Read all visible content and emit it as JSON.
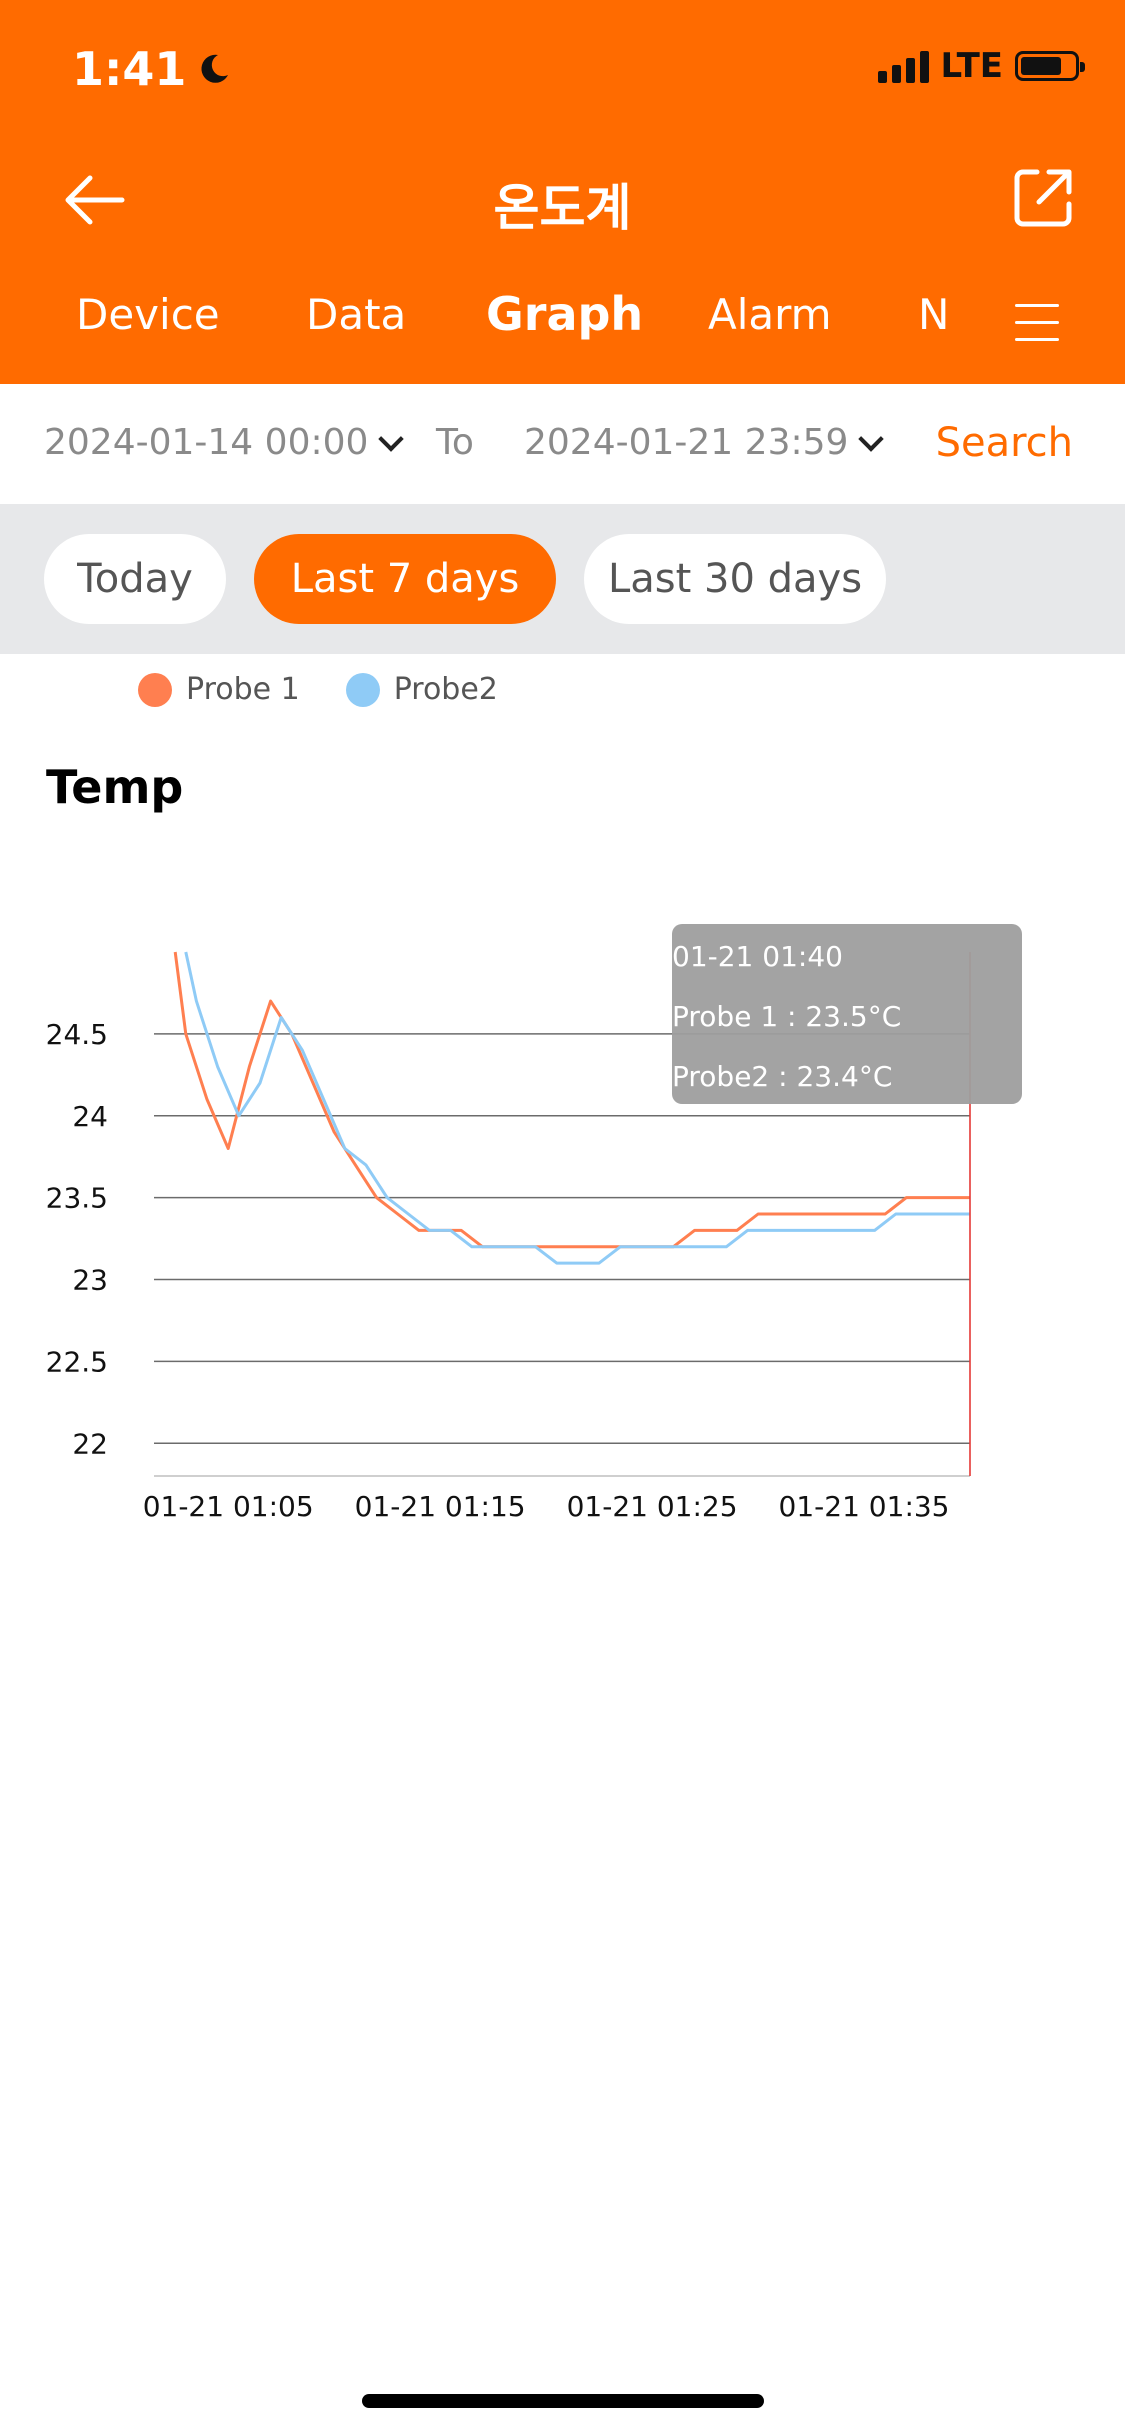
{
  "status_bar": {
    "time": "1:41",
    "network": "LTE"
  },
  "header": {
    "title": "온도계"
  },
  "tabs": [
    {
      "label": "Device",
      "active": false
    },
    {
      "label": "Data",
      "active": false
    },
    {
      "label": "Graph",
      "active": true
    },
    {
      "label": "Alarm",
      "active": false
    },
    {
      "label": "N",
      "active": false
    }
  ],
  "date_range": {
    "from": "2024-01-14 00:00",
    "to_label": "To",
    "to": "2024-01-21 23:59",
    "search_label": "Search"
  },
  "range_buttons": [
    {
      "label": "Today",
      "active": false
    },
    {
      "label": "Last 7 days",
      "active": true
    },
    {
      "label": "Last 30 days",
      "active": false
    }
  ],
  "colors": {
    "accent": "#FF6B00",
    "probe1": "#FF7F50",
    "probe2": "#8FCBF6"
  },
  "chart_data": {
    "type": "line",
    "title": "Temp",
    "xlabel": "",
    "ylabel": "",
    "ylim": [
      21.8,
      25.0
    ],
    "yticks": [
      22,
      22.5,
      23,
      23.5,
      24,
      24.5
    ],
    "xlim": [
      1.5,
      40
    ],
    "x_tick_labels": [
      {
        "x": 5,
        "label": "01-21 01:05"
      },
      {
        "x": 15,
        "label": "01-21 01:15"
      },
      {
        "x": 25,
        "label": "01-21 01:25"
      },
      {
        "x": 35,
        "label": "01-21 01:35"
      }
    ],
    "legend_position": "top-left",
    "series": [
      {
        "name": "Probe 1",
        "points": [
          [
            2.5,
            25.0
          ],
          [
            3,
            24.5
          ],
          [
            4,
            24.1
          ],
          [
            5,
            23.8
          ],
          [
            6,
            24.3
          ],
          [
            7,
            24.7
          ],
          [
            8,
            24.5
          ],
          [
            9,
            24.2
          ],
          [
            10,
            23.9
          ],
          [
            11,
            23.7
          ],
          [
            12,
            23.5
          ],
          [
            13,
            23.4
          ],
          [
            14,
            23.3
          ],
          [
            15,
            23.3
          ],
          [
            16,
            23.3
          ],
          [
            17,
            23.2
          ],
          [
            18,
            23.2
          ],
          [
            19,
            23.2
          ],
          [
            20,
            23.2
          ],
          [
            21,
            23.2
          ],
          [
            22,
            23.2
          ],
          [
            23,
            23.2
          ],
          [
            24,
            23.2
          ],
          [
            25,
            23.2
          ],
          [
            26,
            23.2
          ],
          [
            27,
            23.3
          ],
          [
            28,
            23.3
          ],
          [
            29,
            23.3
          ],
          [
            30,
            23.4
          ],
          [
            31,
            23.4
          ],
          [
            32,
            23.4
          ],
          [
            33,
            23.4
          ],
          [
            34,
            23.4
          ],
          [
            35,
            23.4
          ],
          [
            36,
            23.4
          ],
          [
            37,
            23.5
          ],
          [
            38,
            23.5
          ],
          [
            39,
            23.5
          ],
          [
            40,
            23.5
          ]
        ]
      },
      {
        "name": "Probe2",
        "points": [
          [
            3,
            25.0
          ],
          [
            3.5,
            24.7
          ],
          [
            4.5,
            24.3
          ],
          [
            5.5,
            24.0
          ],
          [
            6.5,
            24.2
          ],
          [
            7.5,
            24.6
          ],
          [
            8.5,
            24.4
          ],
          [
            9.5,
            24.1
          ],
          [
            10.5,
            23.8
          ],
          [
            11.5,
            23.7
          ],
          [
            12.5,
            23.5
          ],
          [
            13.5,
            23.4
          ],
          [
            14.5,
            23.3
          ],
          [
            15.5,
            23.3
          ],
          [
            16.5,
            23.2
          ],
          [
            17.5,
            23.2
          ],
          [
            18.5,
            23.2
          ],
          [
            19.5,
            23.2
          ],
          [
            20.5,
            23.1
          ],
          [
            21.5,
            23.1
          ],
          [
            22.5,
            23.1
          ],
          [
            23.5,
            23.2
          ],
          [
            24.5,
            23.2
          ],
          [
            25.5,
            23.2
          ],
          [
            26.5,
            23.2
          ],
          [
            27.5,
            23.2
          ],
          [
            28.5,
            23.2
          ],
          [
            29.5,
            23.3
          ],
          [
            30.5,
            23.3
          ],
          [
            31.5,
            23.3
          ],
          [
            32.5,
            23.3
          ],
          [
            33.5,
            23.3
          ],
          [
            34.5,
            23.3
          ],
          [
            35.5,
            23.3
          ],
          [
            36.5,
            23.4
          ],
          [
            37.5,
            23.4
          ],
          [
            38.5,
            23.4
          ],
          [
            39.5,
            23.4
          ],
          [
            40,
            23.4
          ]
        ]
      }
    ],
    "cursor_x": 40,
    "tooltip": {
      "time": "01-21 01:40",
      "line1": "Probe 1 : 23.5°C",
      "line2": "Probe2  : 23.4°C"
    }
  }
}
